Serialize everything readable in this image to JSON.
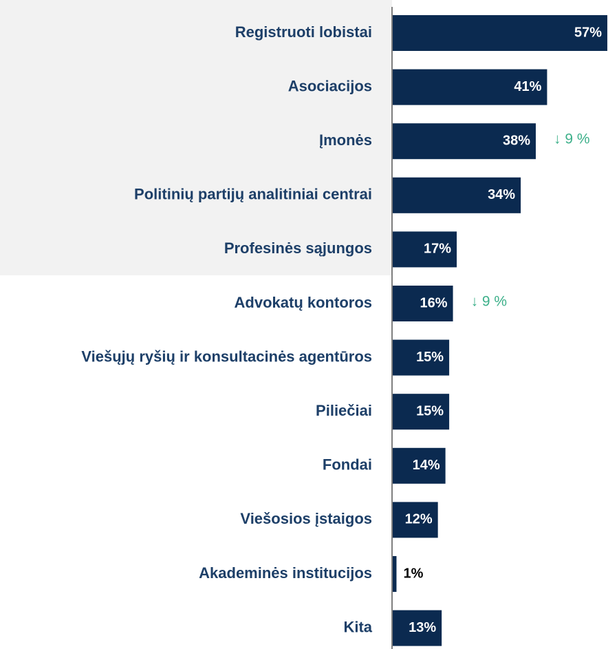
{
  "chart_data": {
    "type": "bar",
    "orientation": "horizontal",
    "categories": [
      "Registruoti lobistai",
      "Asociacijos",
      "Įmonės",
      "Politinių partijų analitiniai centrai",
      "Profesinės sąjungos",
      "Advokatų kontoros",
      "Viešųjų ryšių ir konsultacinės agentūros",
      "Piliečiai",
      "Fondai",
      "Viešosios įstaigos",
      "Akademinės institucijos",
      "Kita"
    ],
    "values": [
      57,
      41,
      38,
      34,
      17,
      16,
      15,
      15,
      14,
      12,
      1,
      13
    ],
    "value_labels": [
      "57%",
      "41%",
      "38%",
      "34%",
      "17%",
      "16%",
      "15%",
      "15%",
      "14%",
      "12%",
      "1%",
      "13%"
    ],
    "annotations": [
      null,
      null,
      "↓ 9 %",
      null,
      null,
      "↓ 9 %",
      null,
      null,
      null,
      null,
      null,
      null
    ],
    "color": "#0b2a50"
  }
}
